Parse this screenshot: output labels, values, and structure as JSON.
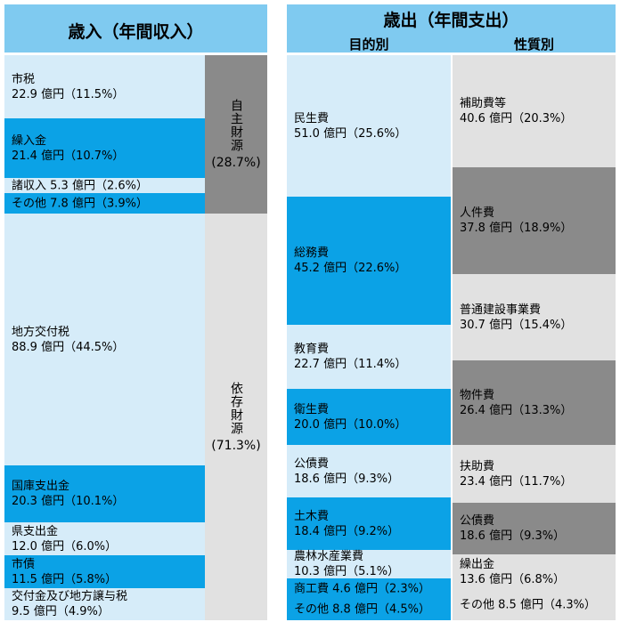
{
  "revenue": {
    "title": "歳入（年間収入）",
    "rows": [
      {
        "name": "市税",
        "amount": "22.9 億円",
        "pct": "（11.5%）",
        "style": "light"
      },
      {
        "name": "繰入金",
        "amount": "21.4 億円",
        "pct": "（10.7%）",
        "style": "blue"
      },
      {
        "name": "諸収入",
        "amount": "5.3 億円",
        "pct": "（2.6%）",
        "style": "light",
        "inline": true
      },
      {
        "name": "その他",
        "amount": "7.8 億円",
        "pct": "（3.9%）",
        "style": "blue",
        "inline": true
      },
      {
        "name": "地方交付税",
        "amount": "88.9 億円",
        "pct": "（44.5%）",
        "style": "light"
      },
      {
        "name": "国庫支出金",
        "amount": "20.3 億円",
        "pct": "（10.1%）",
        "style": "blue"
      },
      {
        "name": "県支出金",
        "amount": "12.0 億円",
        "pct": "（6.0%）",
        "style": "light"
      },
      {
        "name": "市債",
        "amount": "11.5 億円",
        "pct": "（5.8%）",
        "style": "blue"
      },
      {
        "name": "交付金及び地方譲与税",
        "amount": "9.5 億円",
        "pct": "（4.9%）",
        "style": "light"
      }
    ],
    "groups": [
      {
        "label": "自主財源",
        "pct": "(28.7%)",
        "style": "g2"
      },
      {
        "label": "依存財源",
        "pct": "(71.3%)",
        "style": "g1"
      }
    ]
  },
  "expenditure": {
    "title": "歳出（年間支出）",
    "purpose_header": "目的別",
    "nature_header": "性質別",
    "purpose": [
      {
        "name": "民生費",
        "amount": "51.0 億円",
        "pct": "（25.6%）",
        "style": "light"
      },
      {
        "name": "総務費",
        "amount": "45.2 億円",
        "pct": "（22.6%）",
        "style": "blue"
      },
      {
        "name": "教育費",
        "amount": "22.7 億円",
        "pct": "（11.4%）",
        "style": "light"
      },
      {
        "name": "衛生費",
        "amount": "20.0 億円",
        "pct": "（10.0%）",
        "style": "blue"
      },
      {
        "name": "公債費",
        "amount": "18.6 億円",
        "pct": "（9.3%）",
        "style": "light"
      },
      {
        "name": "土木費",
        "amount": "18.4 億円",
        "pct": "（9.2%）",
        "style": "blue"
      },
      {
        "name": "農林水産業費",
        "amount": "10.3 億円",
        "pct": "（5.1%）",
        "style": "light"
      },
      {
        "name": "商工費",
        "amount": "4.6 億円",
        "pct": "（2.3%）",
        "style": "blue",
        "inline": true
      },
      {
        "name": "その他",
        "amount": "8.8 億円",
        "pct": "（4.5%）",
        "style": "blue",
        "inline": true
      }
    ],
    "nature": [
      {
        "name": "補助費等",
        "amount": "40.6 億円",
        "pct": "（20.3%）",
        "style": "g1"
      },
      {
        "name": "人件費",
        "amount": "37.8 億円",
        "pct": "（18.9%）",
        "style": "g2"
      },
      {
        "name": "普通建設事業費",
        "amount": "30.7 億円",
        "pct": "（15.4%）",
        "style": "g1"
      },
      {
        "name": "物件費",
        "amount": "26.4 億円",
        "pct": "（13.3%）",
        "style": "g2"
      },
      {
        "name": "扶助費",
        "amount": "23.4 億円",
        "pct": "（11.7%）",
        "style": "g1"
      },
      {
        "name": "公債費",
        "amount": "18.6 億円",
        "pct": "（9.3%）",
        "style": "g2"
      },
      {
        "name": "繰出金",
        "amount": "13.6 億円",
        "pct": "（6.8%）",
        "style": "g1"
      },
      {
        "name": "その他",
        "amount": "8.5 億円",
        "pct": "（4.3%）",
        "style": "g1",
        "inline": true
      }
    ]
  },
  "chart_data": [
    {
      "type": "table",
      "title": "歳入（年間収入）",
      "categories": [
        "市税",
        "繰入金",
        "諸収入",
        "その他",
        "地方交付税",
        "国庫支出金",
        "県支出金",
        "市債",
        "交付金及び地方譲与税"
      ],
      "values": [
        22.9,
        21.4,
        5.3,
        7.8,
        88.9,
        20.3,
        12.0,
        11.5,
        9.5
      ],
      "percent": [
        11.5,
        10.7,
        2.6,
        3.9,
        44.5,
        10.1,
        6.0,
        5.8,
        4.9
      ],
      "groups": [
        {
          "name": "自主財源",
          "percent": 28.7
        },
        {
          "name": "依存財源",
          "percent": 71.3
        }
      ]
    },
    {
      "type": "table",
      "title": "歳出（年間支出） 目的別",
      "categories": [
        "民生費",
        "総務費",
        "教育費",
        "衛生費",
        "公債費",
        "土木費",
        "農林水産業費",
        "商工費",
        "その他"
      ],
      "values": [
        51.0,
        45.2,
        22.7,
        20.0,
        18.6,
        18.4,
        10.3,
        4.6,
        8.8
      ],
      "percent": [
        25.6,
        22.6,
        11.4,
        10.0,
        9.3,
        9.2,
        5.1,
        2.3,
        4.5
      ]
    },
    {
      "type": "table",
      "title": "歳出（年間支出） 性質別",
      "categories": [
        "補助費等",
        "人件費",
        "普通建設事業費",
        "物件費",
        "扶助費",
        "公債費",
        "繰出金",
        "その他"
      ],
      "values": [
        40.6,
        37.8,
        30.7,
        26.4,
        23.4,
        18.6,
        13.6,
        8.5
      ],
      "percent": [
        20.3,
        18.9,
        15.4,
        13.3,
        11.7,
        9.3,
        6.8,
        4.3
      ]
    }
  ]
}
